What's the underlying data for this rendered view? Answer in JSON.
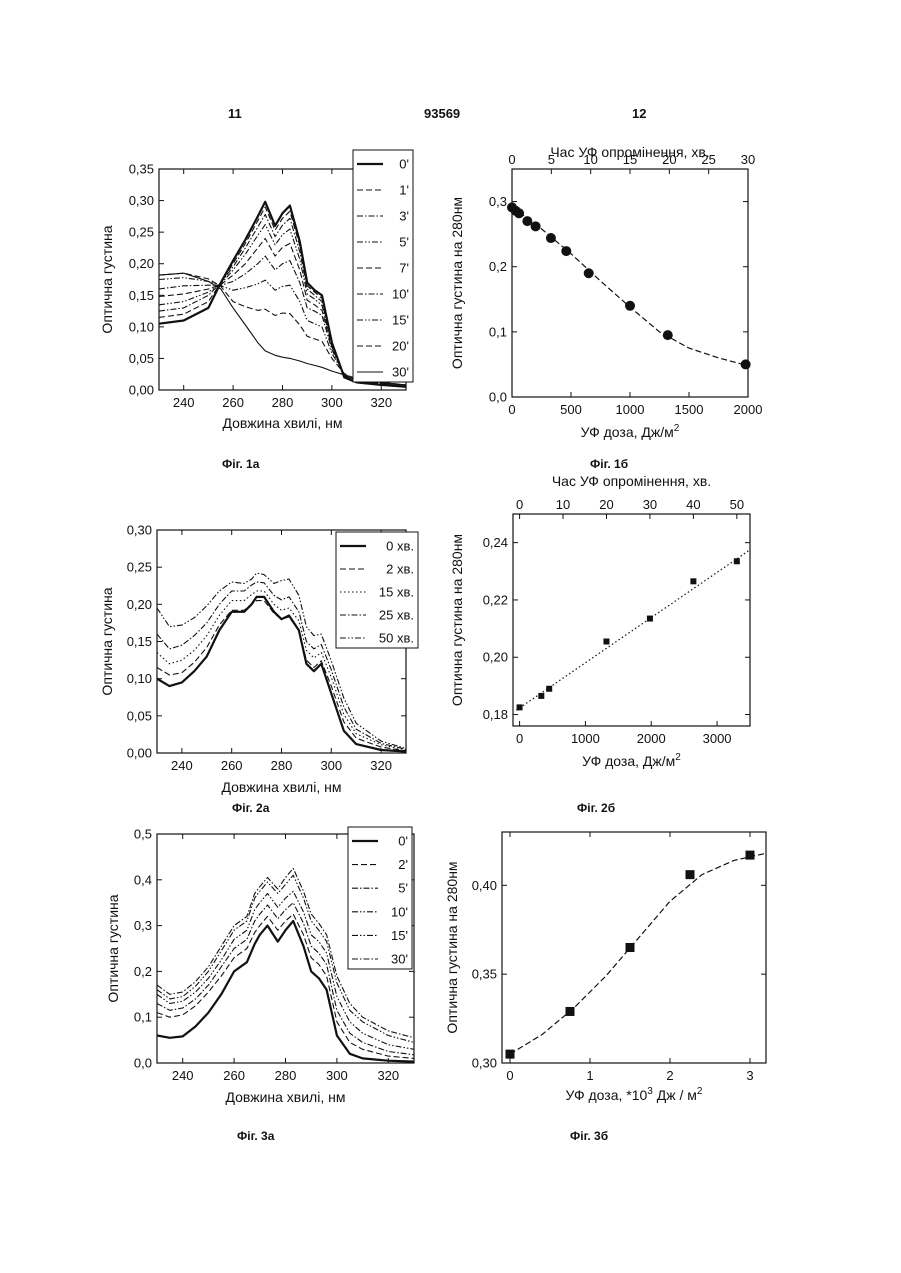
{
  "header": {
    "page_left": "11",
    "patent_number": "93569",
    "page_right": "12"
  },
  "chart_data": [
    {
      "id": "fig1a",
      "type": "line",
      "caption": "Фіг. 1а",
      "xlabel": "Довжина хвилі, нм",
      "ylabel": "Оптична густина",
      "xlim": [
        230,
        330
      ],
      "ylim": [
        0,
        0.35
      ],
      "xticks": [
        240,
        260,
        280,
        300,
        320
      ],
      "xtick_labels": [
        "240",
        "260",
        "280",
        "300",
        "320"
      ],
      "yticks": [
        0,
        0.05,
        0.1,
        0.15,
        0.2,
        0.25,
        0.3,
        0.35
      ],
      "ytick_labels": [
        "0,00",
        "0,05",
        "0,10",
        "0,15",
        "0,20",
        "0,25",
        "0,30",
        "0,35"
      ],
      "x": [
        230,
        240,
        250,
        255,
        260,
        265,
        270,
        273,
        277,
        280,
        283,
        287,
        290,
        293,
        296,
        300,
        305,
        310,
        320,
        330
      ],
      "series": [
        {
          "name": "0'",
          "style": "solid-thick",
          "values": [
            0.105,
            0.11,
            0.13,
            0.17,
            0.205,
            0.238,
            0.275,
            0.298,
            0.26,
            0.28,
            0.292,
            0.235,
            0.17,
            0.158,
            0.15,
            0.075,
            0.02,
            0.012,
            0.008,
            0.005
          ]
        },
        {
          "name": "1'",
          "style": "dash",
          "values": [
            0.115,
            0.12,
            0.14,
            0.17,
            0.2,
            0.232,
            0.268,
            0.29,
            0.253,
            0.272,
            0.283,
            0.228,
            0.165,
            0.155,
            0.145,
            0.074,
            0.02,
            0.012,
            0.008,
            0.005
          ]
        },
        {
          "name": "3'",
          "style": "dashdot",
          "values": [
            0.125,
            0.13,
            0.15,
            0.17,
            0.195,
            0.225,
            0.258,
            0.278,
            0.243,
            0.261,
            0.272,
            0.219,
            0.16,
            0.15,
            0.14,
            0.072,
            0.021,
            0.013,
            0.009,
            0.006
          ]
        },
        {
          "name": "5'",
          "style": "dashdotdot",
          "values": [
            0.135,
            0.14,
            0.155,
            0.168,
            0.19,
            0.215,
            0.245,
            0.262,
            0.23,
            0.246,
            0.255,
            0.207,
            0.152,
            0.144,
            0.134,
            0.07,
            0.022,
            0.013,
            0.009,
            0.006
          ]
        },
        {
          "name": "7'",
          "style": "dash",
          "values": [
            0.148,
            0.152,
            0.16,
            0.167,
            0.182,
            0.2,
            0.225,
            0.24,
            0.212,
            0.226,
            0.232,
            0.19,
            0.142,
            0.135,
            0.126,
            0.068,
            0.023,
            0.014,
            0.01,
            0.006
          ]
        },
        {
          "name": "10'",
          "style": "dashdot",
          "values": [
            0.16,
            0.165,
            0.166,
            0.166,
            0.172,
            0.184,
            0.2,
            0.212,
            0.19,
            0.2,
            0.205,
            0.17,
            0.13,
            0.125,
            0.118,
            0.064,
            0.024,
            0.015,
            0.01,
            0.007
          ]
        },
        {
          "name": "15'",
          "style": "dashdotdot",
          "values": [
            0.175,
            0.178,
            0.172,
            0.165,
            0.158,
            0.162,
            0.168,
            0.174,
            0.158,
            0.164,
            0.166,
            0.14,
            0.11,
            0.105,
            0.1,
            0.058,
            0.025,
            0.016,
            0.011,
            0.007
          ]
        },
        {
          "name": "20'",
          "style": "dash",
          "values": [
            0.182,
            0.185,
            0.176,
            0.164,
            0.14,
            0.132,
            0.126,
            0.128,
            0.118,
            0.122,
            0.121,
            0.103,
            0.085,
            0.081,
            0.077,
            0.05,
            0.026,
            0.017,
            0.012,
            0.008
          ]
        },
        {
          "name": "30'",
          "style": "solid",
          "values": [
            0.182,
            0.185,
            0.172,
            0.16,
            0.13,
            0.103,
            0.075,
            0.062,
            0.055,
            0.052,
            0.05,
            0.046,
            0.042,
            0.039,
            0.036,
            0.03,
            0.024,
            0.018,
            0.012,
            0.008
          ]
        }
      ]
    },
    {
      "id": "fig1b",
      "type": "scatter",
      "caption": "Фіг. 1б",
      "xlabel": "УФ доза, Дж/м",
      "xlabel_sup": "2",
      "ylabel": "Оптична густина на 280нм",
      "top_axis_label": "Час УФ опромінення, хв.",
      "xlim": [
        0,
        2000
      ],
      "ylim": [
        0,
        0.35
      ],
      "xticks": [
        0,
        500,
        1000,
        1500,
        2000
      ],
      "xtick_labels": [
        "0",
        "500",
        "1000",
        "1500",
        "2000"
      ],
      "yticks": [
        0,
        0.1,
        0.2,
        0.3
      ],
      "ytick_labels": [
        "0,0",
        "0,1",
        "0,2",
        "0,3"
      ],
      "top_ticks": [
        0,
        5,
        10,
        15,
        20,
        25,
        30
      ],
      "top_tick_labels": [
        "0",
        "5",
        "10",
        "15",
        "20",
        "25",
        "30"
      ],
      "top_max": 30,
      "x": [
        0,
        30,
        60,
        130,
        200,
        330,
        460,
        650,
        1000,
        1320,
        1980
      ],
      "y": [
        0.291,
        0.286,
        0.282,
        0.27,
        0.262,
        0.244,
        0.224,
        0.19,
        0.14,
        0.095,
        0.05
      ],
      "fit": {
        "style": "dash",
        "x": [
          0,
          250,
          500,
          750,
          1000,
          1250,
          1500,
          1750,
          2000
        ],
        "y": [
          0.292,
          0.258,
          0.22,
          0.178,
          0.138,
          0.1,
          0.075,
          0.06,
          0.048
        ]
      }
    },
    {
      "id": "fig2a",
      "type": "line",
      "caption": "Фіг. 2а",
      "xlabel": "Довжина хвилі, нм",
      "ylabel": "Оптична густина",
      "xlim": [
        230,
        330
      ],
      "ylim": [
        0,
        0.3
      ],
      "xticks": [
        240,
        260,
        280,
        300,
        320
      ],
      "xtick_labels": [
        "240",
        "260",
        "280",
        "300",
        "320"
      ],
      "yticks": [
        0,
        0.05,
        0.1,
        0.15,
        0.2,
        0.25,
        0.3
      ],
      "ytick_labels": [
        "0,00",
        "0,05",
        "0,10",
        "0,15",
        "0,20",
        "0,25",
        "0,30"
      ],
      "x": [
        230,
        235,
        240,
        245,
        250,
        255,
        260,
        265,
        268,
        270,
        273,
        277,
        280,
        283,
        287,
        290,
        293,
        296,
        300,
        305,
        310,
        320,
        330
      ],
      "series": [
        {
          "name": "0 хв.",
          "style": "solid-thick",
          "values": [
            0.1,
            0.09,
            0.095,
            0.11,
            0.13,
            0.165,
            0.19,
            0.19,
            0.2,
            0.21,
            0.21,
            0.19,
            0.18,
            0.185,
            0.165,
            0.12,
            0.11,
            0.12,
            0.08,
            0.03,
            0.012,
            0.004,
            0.002
          ]
        },
        {
          "name": "2 хв.",
          "style": "dash",
          "values": [
            0.115,
            0.105,
            0.108,
            0.122,
            0.142,
            0.172,
            0.192,
            0.192,
            0.2,
            0.205,
            0.205,
            0.188,
            0.18,
            0.183,
            0.165,
            0.125,
            0.115,
            0.124,
            0.09,
            0.042,
            0.02,
            0.008,
            0.003
          ]
        },
        {
          "name": "15 хв.",
          "style": "dot",
          "values": [
            0.135,
            0.12,
            0.125,
            0.138,
            0.158,
            0.185,
            0.205,
            0.205,
            0.213,
            0.218,
            0.218,
            0.2,
            0.192,
            0.195,
            0.178,
            0.138,
            0.128,
            0.135,
            0.102,
            0.052,
            0.026,
            0.011,
            0.004
          ]
        },
        {
          "name": "25 хв.",
          "style": "dashdot",
          "values": [
            0.16,
            0.14,
            0.145,
            0.158,
            0.175,
            0.2,
            0.218,
            0.218,
            0.226,
            0.23,
            0.229,
            0.212,
            0.206,
            0.21,
            0.19,
            0.15,
            0.14,
            0.146,
            0.112,
            0.062,
            0.032,
            0.013,
            0.005
          ]
        },
        {
          "name": "50 хв.",
          "style": "dashdotdot",
          "values": [
            0.195,
            0.17,
            0.172,
            0.182,
            0.198,
            0.218,
            0.23,
            0.228,
            0.234,
            0.242,
            0.24,
            0.228,
            0.232,
            0.234,
            0.212,
            0.17,
            0.158,
            0.16,
            0.124,
            0.074,
            0.04,
            0.016,
            0.006
          ]
        }
      ]
    },
    {
      "id": "fig2b",
      "type": "scatter",
      "caption": "Фіг. 2б",
      "xlabel": "УФ доза, Дж/м",
      "xlabel_sup": "2",
      "ylabel": "Оптична густина на 280нм",
      "top_axis_label": "Час УФ опромінення, хв.",
      "xlim": [
        -100,
        3500
      ],
      "ylim": [
        0.176,
        0.25
      ],
      "xticks": [
        0,
        1000,
        2000,
        3000
      ],
      "xtick_labels": [
        "0",
        "1000",
        "2000",
        "3000"
      ],
      "yticks": [
        0.18,
        0.2,
        0.22,
        0.24
      ],
      "ytick_labels": [
        "0,18",
        "0,20",
        "0,22",
        "0,24"
      ],
      "top_ticks": [
        0,
        10,
        20,
        30,
        40,
        50
      ],
      "top_tick_labels": [
        "0",
        "10",
        "20",
        "30",
        "40",
        "50"
      ],
      "top_max": 50,
      "x": [
        0,
        330,
        450,
        1320,
        1980,
        2640,
        3300
      ],
      "y": [
        0.1825,
        0.1865,
        0.189,
        0.2055,
        0.2135,
        0.2265,
        0.2335
      ],
      "fit": {
        "style": "dot",
        "x": [
          -50,
          3500
        ],
        "y": [
          0.1815,
          0.2375
        ]
      }
    },
    {
      "id": "fig3a",
      "type": "line",
      "caption": "Фіг. 3а",
      "xlabel": "Довжина хвилі, нм",
      "ylabel": "Оптична густина",
      "xlim": [
        230,
        330
      ],
      "ylim": [
        0,
        0.5
      ],
      "xticks": [
        240,
        260,
        280,
        300,
        320
      ],
      "xtick_labels": [
        "240",
        "260",
        "280",
        "300",
        "320"
      ],
      "yticks": [
        0,
        0.1,
        0.2,
        0.3,
        0.4,
        0.5
      ],
      "ytick_labels": [
        "0,0",
        "0,1",
        "0,2",
        "0,3",
        "0,4",
        "0,5"
      ],
      "x": [
        230,
        235,
        240,
        245,
        250,
        255,
        260,
        265,
        268,
        270,
        273,
        277,
        280,
        283,
        287,
        290,
        293,
        296,
        300,
        305,
        310,
        320,
        330
      ],
      "series": [
        {
          "name": "0'",
          "style": "solid-thick",
          "values": [
            0.06,
            0.055,
            0.058,
            0.08,
            0.11,
            0.15,
            0.2,
            0.22,
            0.26,
            0.28,
            0.3,
            0.265,
            0.29,
            0.31,
            0.255,
            0.2,
            0.185,
            0.16,
            0.06,
            0.02,
            0.01,
            0.005,
            0.003
          ]
        },
        {
          "name": "2'",
          "style": "dash",
          "values": [
            0.11,
            0.1,
            0.105,
            0.125,
            0.155,
            0.19,
            0.23,
            0.25,
            0.285,
            0.3,
            0.32,
            0.29,
            0.31,
            0.325,
            0.28,
            0.23,
            0.215,
            0.19,
            0.09,
            0.045,
            0.03,
            0.015,
            0.01
          ]
        },
        {
          "name": "5'",
          "style": "dashdot",
          "values": [
            0.13,
            0.115,
            0.12,
            0.14,
            0.17,
            0.21,
            0.25,
            0.27,
            0.31,
            0.325,
            0.345,
            0.315,
            0.335,
            0.35,
            0.305,
            0.255,
            0.24,
            0.215,
            0.115,
            0.065,
            0.045,
            0.025,
            0.018
          ]
        },
        {
          "name": "10'",
          "style": "dashdotdot",
          "values": [
            0.15,
            0.13,
            0.135,
            0.155,
            0.185,
            0.225,
            0.27,
            0.29,
            0.335,
            0.35,
            0.37,
            0.34,
            0.36,
            0.375,
            0.33,
            0.28,
            0.265,
            0.24,
            0.145,
            0.09,
            0.065,
            0.04,
            0.03
          ]
        },
        {
          "name": "15'",
          "style": "dashdotdot",
          "values": [
            0.16,
            0.14,
            0.145,
            0.168,
            0.2,
            0.245,
            0.29,
            0.31,
            0.36,
            0.375,
            0.395,
            0.37,
            0.39,
            0.41,
            0.36,
            0.31,
            0.29,
            0.265,
            0.175,
            0.115,
            0.09,
            0.06,
            0.045
          ]
        },
        {
          "name": "30'",
          "style": "dashdot",
          "values": [
            0.17,
            0.15,
            0.155,
            0.178,
            0.21,
            0.255,
            0.3,
            0.32,
            0.37,
            0.385,
            0.405,
            0.38,
            0.405,
            0.425,
            0.375,
            0.325,
            0.305,
            0.28,
            0.19,
            0.13,
            0.1,
            0.07,
            0.055
          ]
        }
      ]
    },
    {
      "id": "fig3b",
      "type": "scatter",
      "caption": "Фіг. 3б",
      "xlabel": "УФ доза, *10",
      "xlabel_sup": "3",
      "xlabel_tail": " Дж / м",
      "xlabel_sup2": "2",
      "ylabel": "Оптична густина на 280нм",
      "xlim": [
        -0.1,
        3.2
      ],
      "ylim": [
        0.3,
        0.43
      ],
      "xticks": [
        0,
        1,
        2,
        3
      ],
      "xtick_labels": [
        "0",
        "1",
        "2",
        "3"
      ],
      "yticks": [
        0.3,
        0.35,
        0.4
      ],
      "ytick_labels": [
        "0,30",
        "0,35",
        "0,40"
      ],
      "x": [
        0,
        0.75,
        1.5,
        2.25,
        3.0
      ],
      "y": [
        0.305,
        0.329,
        0.365,
        0.406,
        0.417
      ],
      "fit": {
        "style": "dash",
        "x": [
          0,
          0.4,
          0.8,
          1.2,
          1.6,
          2.0,
          2.4,
          2.8,
          3.2
        ],
        "y": [
          0.305,
          0.316,
          0.331,
          0.349,
          0.37,
          0.391,
          0.406,
          0.414,
          0.418
        ]
      }
    }
  ]
}
